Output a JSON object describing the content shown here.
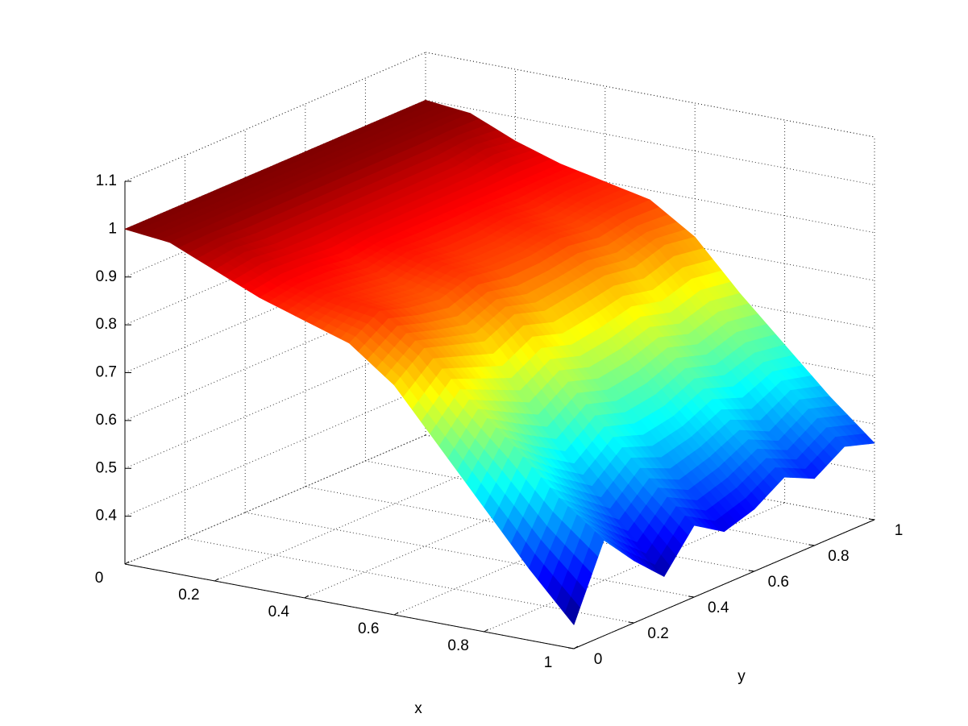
{
  "chart_data": {
    "type": "surface",
    "xlabel": "x",
    "ylabel": "y",
    "x": [
      0,
      0.1,
      0.2,
      0.3,
      0.4,
      0.5,
      0.6,
      0.7,
      0.8,
      0.9,
      1
    ],
    "y": [
      0,
      0.1,
      0.2,
      0.3,
      0.4,
      0.5,
      0.6,
      0.7,
      0.8,
      0.9,
      1
    ],
    "z": [
      [
        1.0,
        0.99,
        0.95,
        0.91,
        0.88,
        0.85,
        0.78,
        0.67,
        0.56,
        0.45,
        0.35
      ],
      [
        1.0,
        0.99,
        0.96,
        0.92,
        0.9,
        0.89,
        0.83,
        0.74,
        0.66,
        0.57,
        0.5
      ],
      [
        1.0,
        0.99,
        0.95,
        0.92,
        0.89,
        0.87,
        0.81,
        0.71,
        0.61,
        0.52,
        0.43
      ],
      [
        1.0,
        0.99,
        0.95,
        0.91,
        0.88,
        0.86,
        0.79,
        0.68,
        0.57,
        0.47,
        0.37
      ],
      [
        1.0,
        0.99,
        0.95,
        0.92,
        0.9,
        0.88,
        0.82,
        0.72,
        0.62,
        0.53,
        0.45
      ],
      [
        1.0,
        0.99,
        0.95,
        0.92,
        0.89,
        0.87,
        0.8,
        0.7,
        0.6,
        0.5,
        0.41
      ],
      [
        1.0,
        0.99,
        0.95,
        0.92,
        0.89,
        0.87,
        0.81,
        0.71,
        0.61,
        0.52,
        0.43
      ],
      [
        1.0,
        0.99,
        0.95,
        0.92,
        0.9,
        0.88,
        0.82,
        0.73,
        0.64,
        0.55,
        0.47
      ],
      [
        1.0,
        0.99,
        0.95,
        0.92,
        0.89,
        0.87,
        0.81,
        0.71,
        0.62,
        0.52,
        0.44
      ],
      [
        1.0,
        0.99,
        0.96,
        0.92,
        0.9,
        0.88,
        0.83,
        0.73,
        0.64,
        0.56,
        0.48
      ],
      [
        1.0,
        0.99,
        0.95,
        0.92,
        0.9,
        0.88,
        0.82,
        0.72,
        0.63,
        0.54,
        0.46
      ]
    ],
    "colormap": "jet",
    "xlim": [
      0,
      1
    ],
    "ylim": [
      0,
      1
    ],
    "zlim": [
      0.3,
      1.1
    ],
    "xticks": [
      0,
      0.2,
      0.4,
      0.6,
      0.8,
      1
    ],
    "yticks": [
      0,
      0.2,
      0.4,
      0.6,
      0.8,
      1
    ],
    "zticks": [
      0.4,
      0.5,
      0.6,
      0.7,
      0.8,
      0.9,
      1,
      1.1
    ],
    "grid": true
  }
}
